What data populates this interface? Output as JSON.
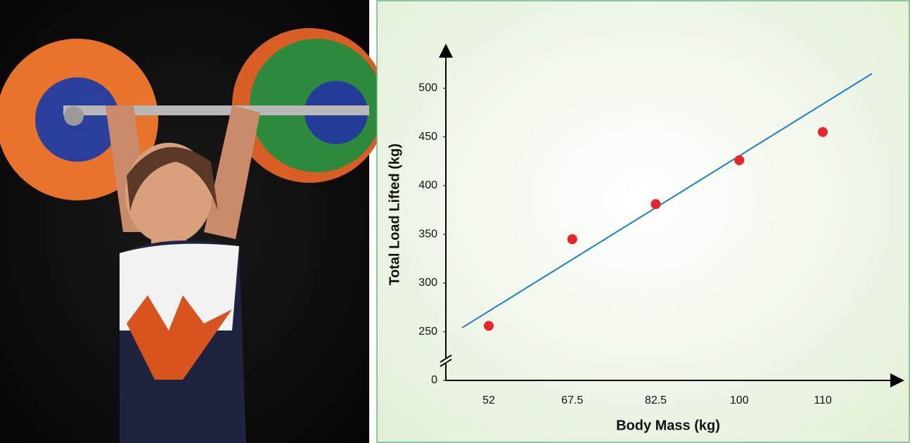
{
  "chart_data": {
    "type": "scatter",
    "x_label": "Body Mass (kg)",
    "y_label": "Total Load Lifted (kg)",
    "categories": [
      "52",
      "67.5",
      "82.5",
      "100",
      "110"
    ],
    "values": [
      256,
      345,
      381,
      426,
      455
    ],
    "color": "#e8242c",
    "trendline": {
      "start": 254,
      "end": 515,
      "color": "#1f7fc4"
    },
    "ylim": [
      200,
      540
    ],
    "yticks": [
      0,
      250,
      300,
      350,
      400,
      450,
      500
    ],
    "axis_break": true,
    "grid": false
  }
}
